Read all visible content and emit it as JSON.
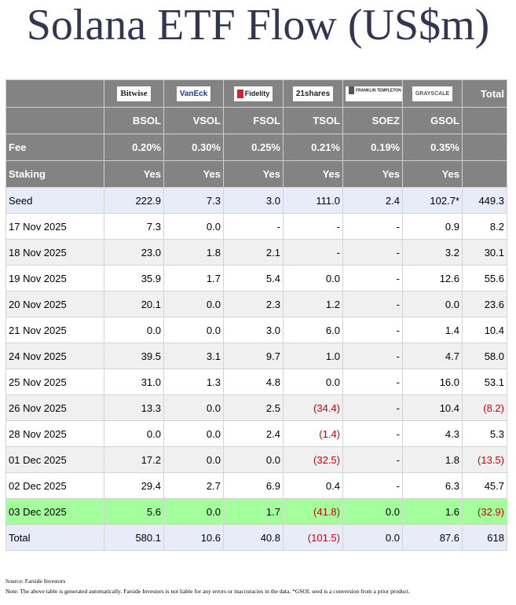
{
  "title": "Solana ETF Flow (US$m)",
  "logos": [
    "Bitwise",
    "VanEck",
    "Fidelity",
    "21shares",
    "FRANKLIN TEMPLETON",
    "GRAYSCALE"
  ],
  "total_label": "Total",
  "tickers": [
    "BSOL",
    "VSOL",
    "FSOL",
    "TSOL",
    "SOEZ",
    "GSOL"
  ],
  "fee_label": "Fee",
  "fees": [
    "0.20%",
    "0.30%",
    "0.25%",
    "0.21%",
    "0.19%",
    "0.35%"
  ],
  "staking_label": "Staking",
  "staking": [
    "Yes",
    "Yes",
    "Yes",
    "Yes",
    "Yes",
    "Yes"
  ],
  "rows": [
    {
      "label": "Seed",
      "cells": [
        "222.9",
        "7.3",
        "3.0",
        "111.0",
        "2.4",
        "102.7*",
        "449.3"
      ]
    },
    {
      "label": "17 Nov 2025",
      "cells": [
        "7.3",
        "0.0",
        "-",
        "-",
        "-",
        "0.9",
        "8.2"
      ]
    },
    {
      "label": "18 Nov 2025",
      "cells": [
        "23.0",
        "1.8",
        "2.1",
        "-",
        "-",
        "3.2",
        "30.1"
      ]
    },
    {
      "label": "19 Nov 2025",
      "cells": [
        "35.9",
        "1.7",
        "5.4",
        "0.0",
        "-",
        "12.6",
        "55.6"
      ]
    },
    {
      "label": "20 Nov 2025",
      "cells": [
        "20.1",
        "0.0",
        "2.3",
        "1.2",
        "-",
        "0.0",
        "23.6"
      ]
    },
    {
      "label": "21 Nov 2025",
      "cells": [
        "0.0",
        "0.0",
        "3.0",
        "6.0",
        "-",
        "1.4",
        "10.4"
      ]
    },
    {
      "label": "24 Nov 2025",
      "cells": [
        "39.5",
        "3.1",
        "9.7",
        "1.0",
        "-",
        "4.7",
        "58.0"
      ]
    },
    {
      "label": "25 Nov 2025",
      "cells": [
        "31.0",
        "1.3",
        "4.8",
        "0.0",
        "-",
        "16.0",
        "53.1"
      ]
    },
    {
      "label": "26 Nov 2025",
      "cells": [
        "13.3",
        "0.0",
        "2.5",
        "(34.4)",
        "-",
        "10.4",
        "(8.2)"
      ]
    },
    {
      "label": "28 Nov 2025",
      "cells": [
        "0.0",
        "0.0",
        "2.4",
        "(1.4)",
        "-",
        "4.3",
        "5.3"
      ]
    },
    {
      "label": "01 Dec 2025",
      "cells": [
        "17.2",
        "0.0",
        "0.0",
        "(32.5)",
        "-",
        "1.8",
        "(13.5)"
      ]
    },
    {
      "label": "02 Dec 2025",
      "cells": [
        "29.4",
        "2.7",
        "6.9",
        "0.4",
        "-",
        "6.3",
        "45.7"
      ]
    },
    {
      "label": "03 Dec 2025",
      "cells": [
        "5.6",
        "0.0",
        "1.7",
        "(41.8)",
        "0.0",
        "1.6",
        "(32.9)"
      ]
    },
    {
      "label": "Total",
      "cells": [
        "580.1",
        "10.6",
        "40.8",
        "(101.5)",
        "0.0",
        "87.6",
        "618"
      ]
    }
  ],
  "source": "Source: Farside Investors",
  "note": "Note: The above table is generated automatically. Farside Investors is not liable for any errors or inaccuracies in the data. *GSOL seed is a conversion from a prior product.",
  "colors": {
    "header_bg": "#838383",
    "seed_total_bg": "#e8ecf8",
    "highlight_bg": "#a3ff9c",
    "negative": "#c8000a",
    "title": "#333650"
  }
}
